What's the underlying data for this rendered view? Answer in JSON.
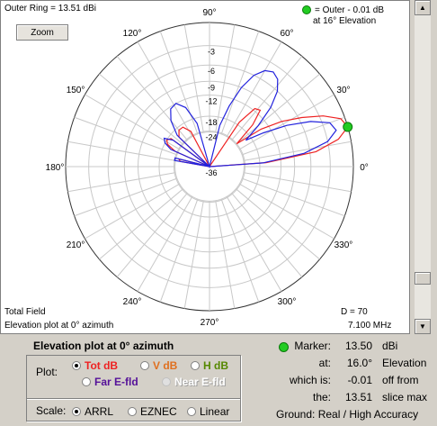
{
  "plot": {
    "outer_ring": "Outer Ring = 13.51 dBi",
    "zoom_label": "Zoom",
    "legend_line1": "= Outer - 0.01 dB",
    "legend_line2": "at 16° Elevation",
    "total_field": "Total Field",
    "plot_desc": "Elevation  plot at 0° azimuth",
    "d_value": "D = 70",
    "frequency": "7.100 MHz",
    "angle_labels": [
      "90°",
      "60°",
      "30°",
      "0°",
      "330°",
      "300°",
      "270°",
      "240°",
      "210°",
      "180°",
      "150°",
      "120°"
    ],
    "db_labels": [
      "-3",
      "-6",
      "-9",
      "-12",
      "-18",
      "-24",
      "-36"
    ],
    "series_colors": {
      "red": "#ee2222",
      "blue": "#2222dd"
    }
  },
  "chart_data": {
    "type": "polar",
    "outer_ring_dbi": 13.51,
    "radial_ticks_db": [
      -3,
      -6,
      -9,
      -12,
      -18,
      -24,
      -36
    ],
    "angle_ticks_deg": [
      0,
      30,
      60,
      90,
      120,
      150,
      180,
      210,
      240,
      270,
      300,
      330
    ],
    "series": [
      {
        "color": "red",
        "points_db": [
          [
            0,
            -36
          ],
          [
            4,
            -16
          ],
          [
            8,
            -5
          ],
          [
            12,
            -1.5
          ],
          [
            16,
            0
          ],
          [
            20,
            -0.5
          ],
          [
            24,
            -2.5
          ],
          [
            28,
            -5.5
          ],
          [
            32,
            -9
          ],
          [
            36,
            -14
          ],
          [
            40,
            -24
          ],
          [
            44,
            -15
          ],
          [
            48,
            -11
          ],
          [
            52,
            -11.5
          ],
          [
            56,
            -17
          ],
          [
            60,
            -36
          ],
          [
            70,
            -36
          ],
          [
            90,
            -36
          ],
          [
            110,
            -36
          ],
          [
            118,
            -22
          ],
          [
            124,
            -19
          ],
          [
            130,
            -19
          ],
          [
            136,
            -21
          ],
          [
            140,
            -36
          ],
          [
            144,
            -19
          ],
          [
            148,
            -18
          ],
          [
            152,
            -19
          ],
          [
            156,
            -23
          ],
          [
            160,
            -36
          ],
          [
            166,
            -26
          ],
          [
            170,
            -27
          ],
          [
            176,
            -36
          ],
          [
            180,
            -36
          ]
        ]
      },
      {
        "color": "blue",
        "points_db": [
          [
            0,
            -36
          ],
          [
            4,
            -17
          ],
          [
            8,
            -7
          ],
          [
            12,
            -3
          ],
          [
            16,
            -1.5
          ],
          [
            20,
            -2
          ],
          [
            24,
            -4.5
          ],
          [
            28,
            -8.5
          ],
          [
            32,
            -14
          ],
          [
            36,
            -20
          ],
          [
            40,
            -14
          ],
          [
            44,
            -9
          ],
          [
            48,
            -6
          ],
          [
            52,
            -4.5
          ],
          [
            56,
            -4
          ],
          [
            60,
            -4.5
          ],
          [
            64,
            -6
          ],
          [
            68,
            -9
          ],
          [
            72,
            -14
          ],
          [
            76,
            -21
          ],
          [
            80,
            -36
          ],
          [
            100,
            -36
          ],
          [
            106,
            -20
          ],
          [
            112,
            -14
          ],
          [
            118,
            -12
          ],
          [
            124,
            -12.5
          ],
          [
            130,
            -15
          ],
          [
            136,
            -20
          ],
          [
            140,
            -36
          ],
          [
            144,
            -20
          ],
          [
            148,
            -17
          ],
          [
            152,
            -18
          ],
          [
            156,
            -21
          ],
          [
            160,
            -36
          ],
          [
            166,
            -24
          ],
          [
            170,
            -24
          ],
          [
            176,
            -36
          ],
          [
            180,
            -36
          ]
        ]
      }
    ],
    "marker": {
      "elevation_deg": 16,
      "value_dbi": 13.5
    }
  },
  "controls": {
    "caption": "Elevation plot at 0° azimuth",
    "plot_label": "Plot:",
    "tot_db": "Tot dB",
    "v_db": "V dB",
    "h_db": "H dB",
    "far_efld": "Far E-fld",
    "near_efld": "Near E-fld",
    "scale_label": "Scale:",
    "arrl": "ARRL",
    "eznec": "EZNEC",
    "linear": "Linear"
  },
  "info": {
    "marker_label": "Marker:",
    "marker_value": "13.50",
    "marker_unit": "dBi",
    "at_label": "at:",
    "at_value": "16.0°",
    "at_unit": "Elevation",
    "which_label": "which is:",
    "which_value": "-0.01",
    "which_unit": "off from",
    "the_label": "the:",
    "the_value": "13.51",
    "the_unit": "slice max",
    "ground": "Ground:  Real / High Accuracy"
  }
}
